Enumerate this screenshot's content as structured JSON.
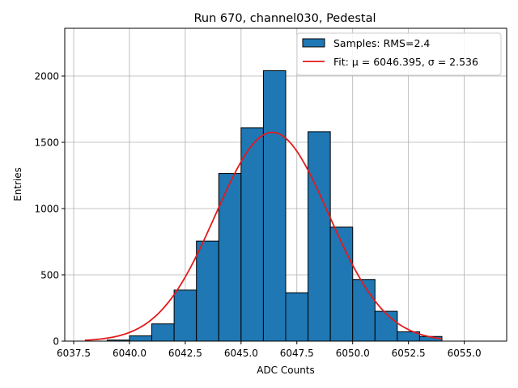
{
  "chart_data": {
    "type": "bar",
    "title": "Run 670, channel030, Pedestal",
    "xlabel": "ADC Counts",
    "ylabel": "Entries",
    "xlim": [
      6037.1,
      6056.9
    ],
    "ylim": [
      0,
      2360
    ],
    "x_ticks": [
      6037.5,
      6040.0,
      6042.5,
      6045.0,
      6047.5,
      6050.0,
      6052.5,
      6055.0
    ],
    "x_tick_labels": [
      "6037.5",
      "6040.0",
      "6042.5",
      "6045.0",
      "6047.5",
      "6050.0",
      "6052.5",
      "6055.0"
    ],
    "y_ticks": [
      0,
      500,
      1000,
      1500,
      2000
    ],
    "y_tick_labels": [
      "0",
      "500",
      "1000",
      "1500",
      "2000"
    ],
    "grid": true,
    "legend_position": "top-right",
    "histogram": {
      "name": "Samples: RMS=2.4",
      "color": "#1f77b4",
      "edge_color": "#000000",
      "bin_edges": [
        6039,
        6040,
        6041,
        6042,
        6043,
        6044,
        6045,
        6046,
        6047,
        6048,
        6049,
        6050,
        6051,
        6052,
        6053,
        6054
      ],
      "counts": [
        8,
        40,
        130,
        385,
        755,
        1265,
        1610,
        2040,
        365,
        1580,
        860,
        465,
        225,
        70,
        35
      ]
    },
    "fit": {
      "name": "Fit: μ = 6046.395, σ = 2.536",
      "color": "#e31a1c",
      "mu": 6046.395,
      "sigma": 2.536,
      "amplitude": 1575,
      "x_range": [
        6038,
        6054
      ]
    }
  }
}
